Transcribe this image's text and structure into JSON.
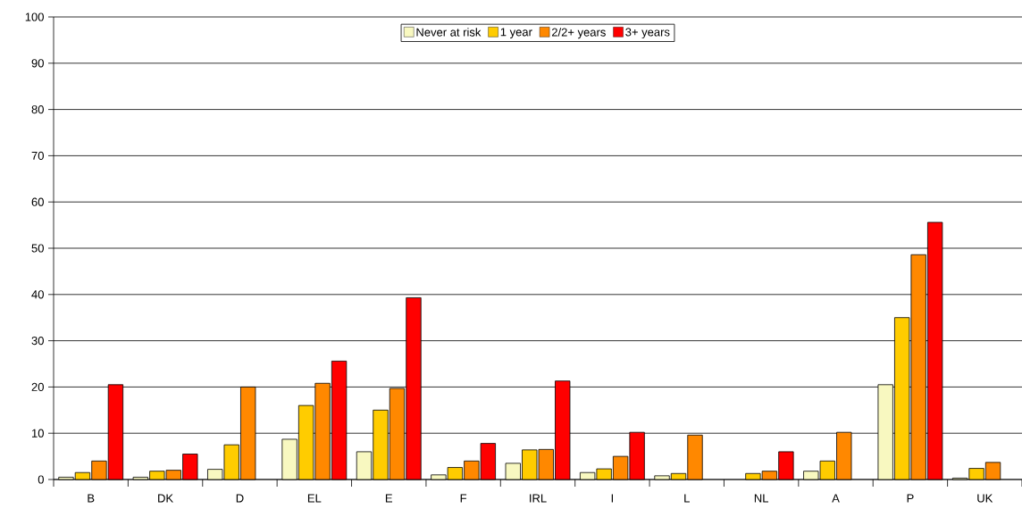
{
  "chart_data": {
    "type": "bar",
    "categories": [
      "B",
      "DK",
      "D",
      "EL",
      "E",
      "F",
      "IRL",
      "I",
      "L",
      "NL",
      "A",
      "P",
      "UK"
    ],
    "series": [
      {
        "name": "Never at risk",
        "color": "#f8f8c0",
        "values": [
          0.5,
          0.5,
          2.2,
          8.7,
          6,
          1,
          3.5,
          1.5,
          0.8,
          null,
          1.8,
          20.5,
          0.3
        ]
      },
      {
        "name": "1 year",
        "color": "#ffcc00",
        "values": [
          1.5,
          1.8,
          7.5,
          16,
          15,
          2.6,
          6.4,
          2.3,
          1.3,
          1.3,
          4,
          35,
          2.4
        ]
      },
      {
        "name": "2/2+ years",
        "color": "#ff8800",
        "values": [
          4,
          2,
          20,
          20.8,
          19.7,
          4,
          6.5,
          5,
          9.6,
          1.8,
          10.2,
          48.6,
          3.7
        ]
      },
      {
        "name": "3+ years",
        "color": "#ff0000",
        "values": [
          20.5,
          5.5,
          null,
          25.6,
          39.3,
          7.8,
          21.3,
          10.2,
          null,
          6,
          null,
          55.6,
          null
        ]
      }
    ],
    "ylim": [
      0,
      100
    ],
    "yticks": [
      0,
      10,
      20,
      30,
      40,
      50,
      60,
      70,
      80,
      90,
      100
    ],
    "grid": "y",
    "legend": "top"
  }
}
